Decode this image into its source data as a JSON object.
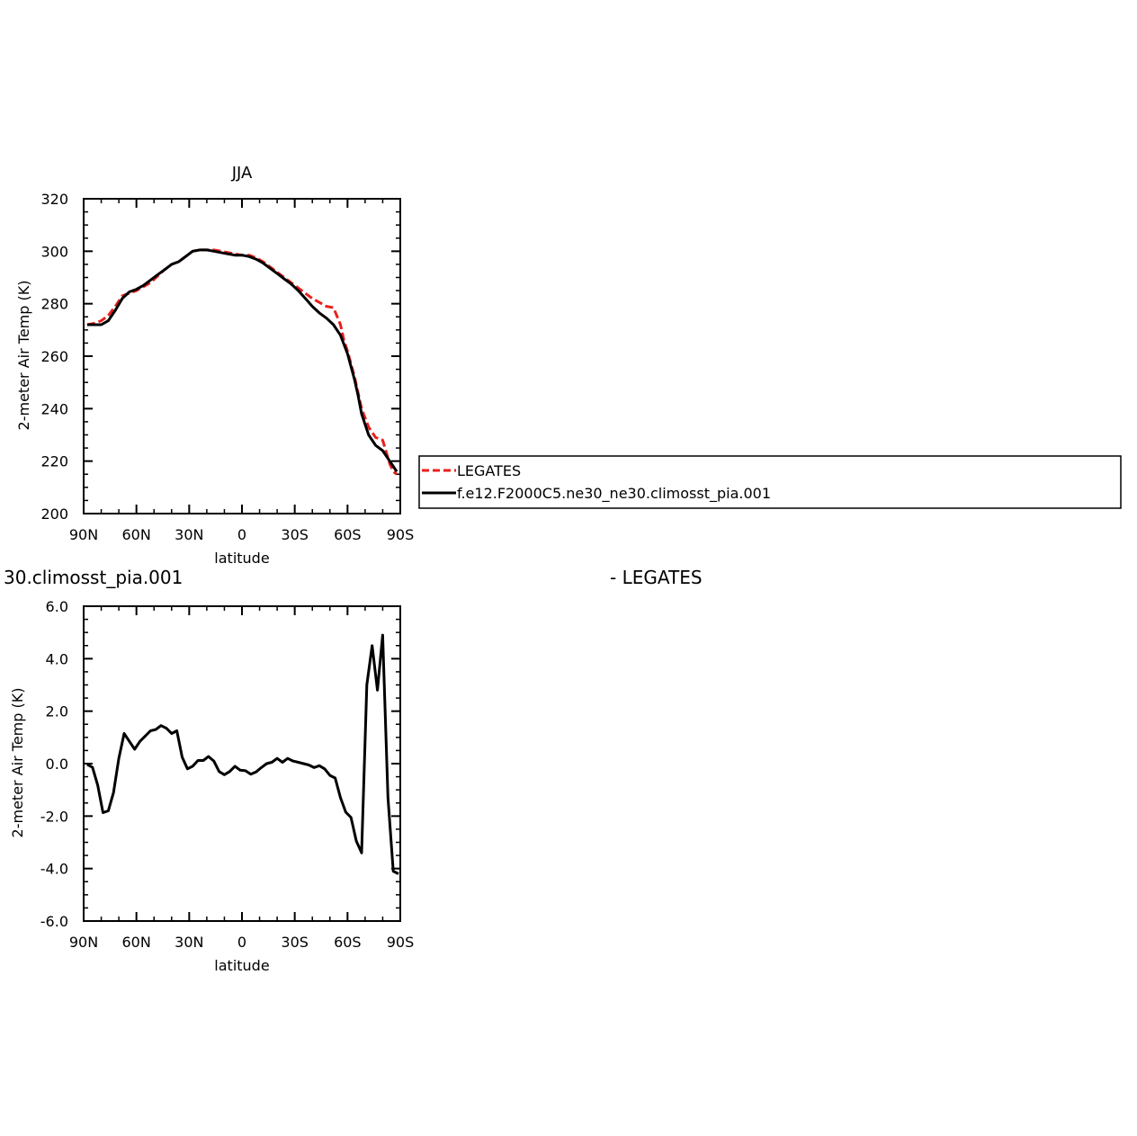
{
  "chart_data": [
    {
      "type": "line",
      "title": "JJA",
      "xlabel": "latitude",
      "ylabel": "2-meter Air Temp (K)",
      "x_tick_labels": [
        "90N",
        "60N",
        "30N",
        "0",
        "30S",
        "60S",
        "90S"
      ],
      "y_tick_labels": [
        "200",
        "220",
        "240",
        "260",
        "280",
        "300",
        "320"
      ],
      "xlim": [
        90,
        -90
      ],
      "ylim": [
        200,
        320
      ],
      "legend": [
        "LEGATES",
        "f.e12.F2000C5.ne30_ne30.climosst_pia.001"
      ],
      "legend_placement": "right, outside plot",
      "series": [
        {
          "name": "LEGATES",
          "color": "#e8201c",
          "dash": "dashed",
          "x": [
            88,
            84,
            80,
            76,
            72,
            68,
            64,
            60,
            56,
            52,
            48,
            44,
            40,
            36,
            32,
            28,
            24,
            20,
            16,
            12,
            8,
            4,
            0,
            -4,
            -8,
            -12,
            -16,
            -20,
            -24,
            -28,
            -32,
            -36,
            -40,
            -44,
            -48,
            -52,
            -56,
            -58,
            -60,
            -64,
            -66,
            -68,
            -72,
            -76,
            -80,
            -84,
            -86,
            -88
          ],
          "y": [
            272,
            272.5,
            273.5,
            275.5,
            279,
            283,
            284,
            285,
            286.5,
            288,
            290.5,
            293,
            295,
            296,
            298,
            300,
            300.5,
            300.5,
            300.5,
            300,
            299.5,
            299,
            298.5,
            298.5,
            297.5,
            296,
            294,
            292,
            290,
            288,
            286,
            284,
            282,
            280.5,
            279,
            278.5,
            272,
            266,
            262,
            252,
            246,
            240,
            233,
            229,
            228,
            219,
            216,
            215
          ]
        },
        {
          "name": "f.e12.F2000C5.ne30_ne30.climosst_pia.001",
          "color": "#000000",
          "dash": "solid",
          "x": [
            88,
            84,
            80,
            76,
            72,
            68,
            64,
            60,
            56,
            52,
            48,
            44,
            40,
            36,
            32,
            28,
            24,
            20,
            16,
            12,
            8,
            4,
            0,
            -4,
            -8,
            -12,
            -16,
            -20,
            -24,
            -28,
            -32,
            -36,
            -40,
            -44,
            -48,
            -52,
            -56,
            -60,
            -64,
            -66,
            -68,
            -72,
            -76,
            -80,
            -84,
            -86,
            -88
          ],
          "y": [
            272,
            272,
            272,
            273.5,
            277.5,
            282,
            284.5,
            285.5,
            287,
            289,
            291,
            293,
            295,
            296,
            298,
            300,
            300.5,
            300.5,
            300,
            299.5,
            299,
            298.5,
            298.5,
            298,
            297,
            295.5,
            293.5,
            291.5,
            289.5,
            287.5,
            285,
            282,
            279,
            276.5,
            274.5,
            272,
            268,
            261,
            251,
            245,
            238,
            230,
            226,
            224,
            220,
            218,
            216
          ]
        }
      ]
    },
    {
      "type": "line",
      "title": "30.climosst_pia.001",
      "subtitle": "- LEGATES",
      "xlabel": "latitude",
      "ylabel": "2-meter Air Temp (K)",
      "x_tick_labels": [
        "90N",
        "60N",
        "30N",
        "0",
        "30S",
        "60S",
        "90S"
      ],
      "y_tick_labels": [
        "-6.0",
        "-4.0",
        "-2.0",
        "0.0",
        "2.0",
        "4.0",
        "6.0"
      ],
      "xlim": [
        90,
        -90
      ],
      "ylim": [
        -6,
        6
      ],
      "series": [
        {
          "color": "#000000",
          "x": [
            88,
            85,
            82,
            79,
            76,
            73,
            70,
            67,
            64,
            61,
            58,
            55,
            52,
            49,
            46,
            43,
            40,
            37,
            34,
            31,
            28,
            25,
            22,
            19,
            16,
            13,
            10,
            7,
            4,
            1,
            -2,
            -5,
            -8,
            -11,
            -14,
            -17,
            -20,
            -23,
            -26,
            -29,
            -32,
            -35,
            -38,
            -41,
            -44,
            -47,
            -50,
            -53,
            -56,
            -59,
            -62,
            -65,
            -68,
            -71,
            -74,
            -77,
            -80,
            -83,
            -86,
            -89
          ],
          "y": [
            -0.03,
            -0.14,
            -0.82,
            -1.87,
            -1.8,
            -1.1,
            0.2,
            1.15,
            0.85,
            0.55,
            0.85,
            1.05,
            1.25,
            1.3,
            1.45,
            1.35,
            1.15,
            1.25,
            0.25,
            -0.2,
            -0.1,
            0.12,
            0.12,
            0.27,
            0.1,
            -0.3,
            -0.42,
            -0.3,
            -0.1,
            -0.25,
            -0.27,
            -0.4,
            -0.32,
            -0.15,
            0.0,
            0.05,
            0.2,
            0.05,
            0.2,
            0.1,
            0.05,
            0.0,
            -0.05,
            -0.15,
            -0.08,
            -0.2,
            -0.45,
            -0.55,
            -1.3,
            -1.85,
            -2.05,
            -2.95,
            -3.4,
            3.0,
            4.5,
            2.8,
            4.9,
            -1.3,
            -4.1,
            -4.2
          ]
        }
      ]
    }
  ]
}
